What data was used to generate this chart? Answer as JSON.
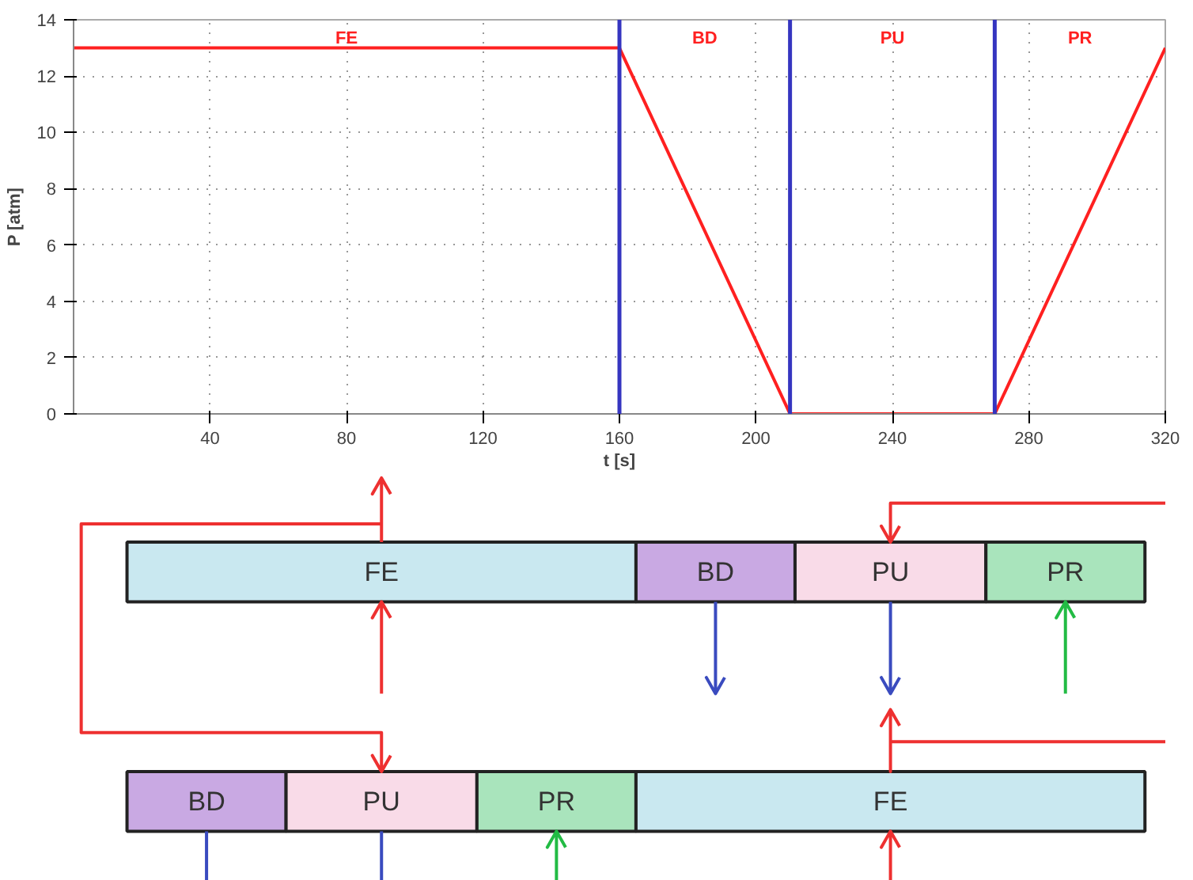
{
  "chart_data": [
    {
      "type": "line",
      "xlabel": "t [s]",
      "ylabel": "P [atm]",
      "x": [
        0,
        160,
        210,
        270,
        320
      ],
      "series": [
        {
          "color": "#ff2020",
          "values": [
            13,
            13,
            0,
            0,
            13
          ]
        }
      ],
      "xlim": [
        0,
        320
      ],
      "xticks": [
        40,
        80,
        120,
        160,
        200,
        240,
        280,
        320
      ],
      "ylim": [
        0,
        14
      ],
      "yticks": [
        0,
        2,
        4,
        6,
        8,
        10,
        12,
        14
      ],
      "grid": true,
      "marker": "none",
      "line_style": "solid",
      "ref_lines": [
        {
          "axis": "x",
          "value": 160,
          "color": "#3535c0"
        },
        {
          "axis": "x",
          "value": 210,
          "color": "#3535c0"
        },
        {
          "axis": "x",
          "value": 270,
          "color": "#3535c0"
        }
      ],
      "annotations": [
        "FE",
        "BD",
        "PU",
        "PR"
      ]
    },
    {
      "type": "other",
      "annotations": [
        "FE",
        "BD",
        "PU",
        "PR",
        "BD",
        "PU",
        "PR",
        "FE"
      ],
      "colors": [
        "#c9e8f0",
        "#c9a9e3",
        "#f9dbe8",
        "#a9e4bc",
        "#c9a9e3",
        "#f9dbe8",
        "#a9e4bc",
        "#c9e8f0"
      ]
    }
  ]
}
